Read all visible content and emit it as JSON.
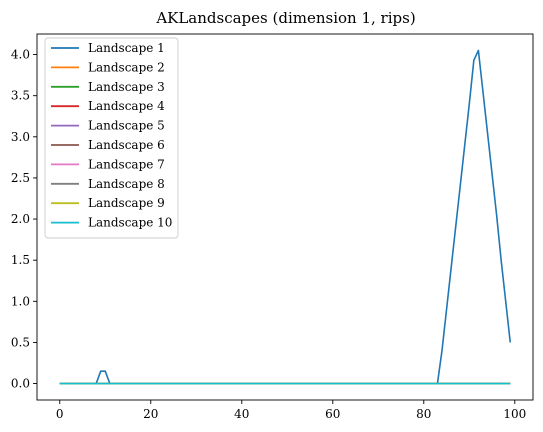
{
  "chart_data": {
    "type": "line",
    "title": "AKLandscapes (dimension 1, rips)",
    "xlabel": "",
    "ylabel": "",
    "xlim": [
      -5,
      104
    ],
    "ylim": [
      -0.2,
      4.25
    ],
    "x_ticks": [
      0,
      20,
      40,
      60,
      80,
      100
    ],
    "y_ticks": [
      0.0,
      0.5,
      1.0,
      1.5,
      2.0,
      2.5,
      3.0,
      3.5,
      4.0
    ],
    "x_tick_labels": [
      "0",
      "20",
      "40",
      "60",
      "80",
      "100"
    ],
    "y_tick_labels": [
      "0.0",
      "0.5",
      "1.0",
      "1.5",
      "2.0",
      "2.5",
      "3.0",
      "3.5",
      "4.0"
    ],
    "grid": false,
    "legend_position": "top-left",
    "x": [
      0,
      8,
      9,
      10,
      11,
      83,
      84,
      85,
      86,
      87,
      88,
      89,
      90,
      91,
      92,
      93,
      94,
      95,
      96,
      97,
      98,
      99
    ],
    "series": [
      {
        "name": "Landscape 1",
        "color": "#1f77b4",
        "values": [
          0,
          0,
          0.15,
          0.15,
          0,
          0,
          0.4,
          0.9,
          1.4,
          1.9,
          2.4,
          2.9,
          3.4,
          3.93,
          4.05,
          3.55,
          3.05,
          2.55,
          2.05,
          1.5,
          1.0,
          0.5
        ]
      },
      {
        "name": "Landscape 2",
        "color": "#ff7f0e",
        "values": [
          0,
          0,
          0,
          0,
          0,
          0,
          0,
          0,
          0,
          0,
          0,
          0,
          0,
          0,
          0,
          0,
          0,
          0,
          0,
          0,
          0,
          0
        ]
      },
      {
        "name": "Landscape 3",
        "color": "#2ca02c",
        "values": [
          0,
          0,
          0,
          0,
          0,
          0,
          0,
          0,
          0,
          0,
          0,
          0,
          0,
          0,
          0,
          0,
          0,
          0,
          0,
          0,
          0,
          0
        ]
      },
      {
        "name": "Landscape 4",
        "color": "#d62728",
        "values": [
          0,
          0,
          0,
          0,
          0,
          0,
          0,
          0,
          0,
          0,
          0,
          0,
          0,
          0,
          0,
          0,
          0,
          0,
          0,
          0,
          0,
          0
        ]
      },
      {
        "name": "Landscape 5",
        "color": "#9467bd",
        "values": [
          0,
          0,
          0,
          0,
          0,
          0,
          0,
          0,
          0,
          0,
          0,
          0,
          0,
          0,
          0,
          0,
          0,
          0,
          0,
          0,
          0,
          0
        ]
      },
      {
        "name": "Landscape 6",
        "color": "#8c564b",
        "values": [
          0,
          0,
          0,
          0,
          0,
          0,
          0,
          0,
          0,
          0,
          0,
          0,
          0,
          0,
          0,
          0,
          0,
          0,
          0,
          0,
          0,
          0
        ]
      },
      {
        "name": "Landscape 7",
        "color": "#e377c2",
        "values": [
          0,
          0,
          0,
          0,
          0,
          0,
          0,
          0,
          0,
          0,
          0,
          0,
          0,
          0,
          0,
          0,
          0,
          0,
          0,
          0,
          0,
          0
        ]
      },
      {
        "name": "Landscape 8",
        "color": "#7f7f7f",
        "values": [
          0,
          0,
          0,
          0,
          0,
          0,
          0,
          0,
          0,
          0,
          0,
          0,
          0,
          0,
          0,
          0,
          0,
          0,
          0,
          0,
          0,
          0
        ]
      },
      {
        "name": "Landscape 9",
        "color": "#bcbd22",
        "values": [
          0,
          0,
          0,
          0,
          0,
          0,
          0,
          0,
          0,
          0,
          0,
          0,
          0,
          0,
          0,
          0,
          0,
          0,
          0,
          0,
          0,
          0
        ]
      },
      {
        "name": "Landscape 10",
        "color": "#17becf",
        "values": [
          0,
          0,
          0,
          0,
          0,
          0,
          0,
          0,
          0,
          0,
          0,
          0,
          0,
          0,
          0,
          0,
          0,
          0,
          0,
          0,
          0,
          0
        ]
      }
    ]
  }
}
